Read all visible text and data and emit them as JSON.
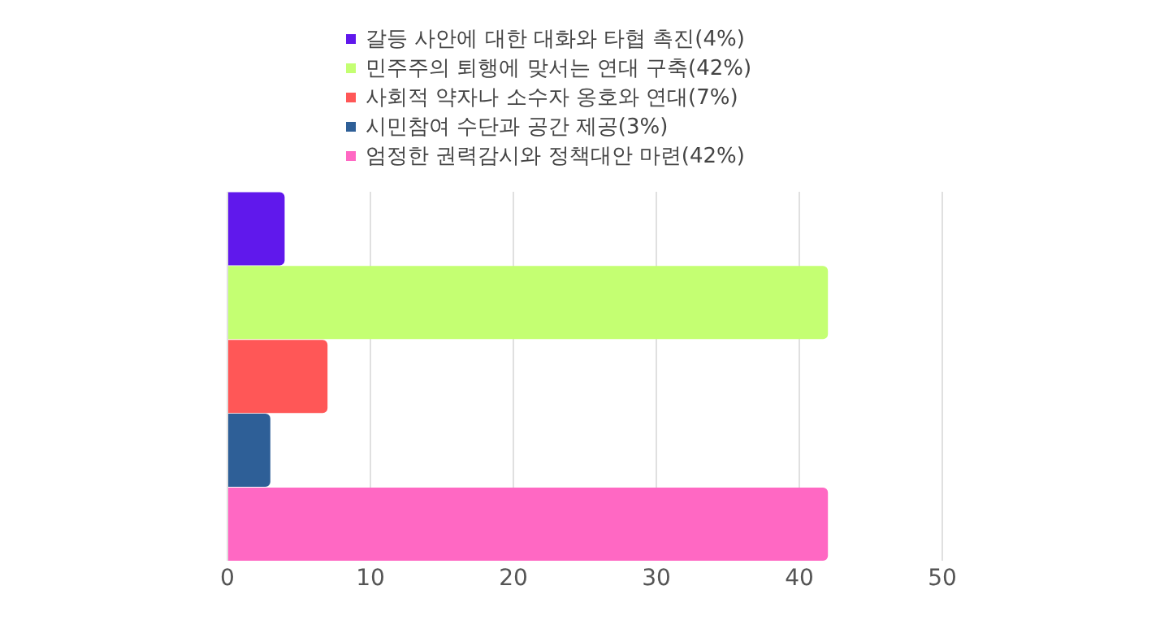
{
  "chart_data": {
    "type": "bar",
    "orientation": "horizontal",
    "categories": [
      null
    ],
    "series": [
      {
        "name": "갈등 사안에 대한 대화와 타협 촉진(4%)",
        "color": "#6018ec",
        "values": [
          4
        ]
      },
      {
        "name": "민주주의 퇴행에 맞서는 연대 구축(42%)",
        "color": "#c4ff72",
        "values": [
          42
        ]
      },
      {
        "name": "사회적 약자나 소수자 옹호와 연대(7%)",
        "color": "#ff5757",
        "values": [
          7
        ]
      },
      {
        "name": "시민참여 수단과 공간 제공(3%)",
        "color": "#2e5f97",
        "values": [
          3
        ]
      },
      {
        "name": "엄정한 권력감시와 정책대안 마련(42%)",
        "color": "#ff68c3",
        "values": [
          42
        ]
      }
    ],
    "xlim": [
      0,
      50
    ],
    "xticks": [
      0,
      10,
      20,
      30,
      40,
      50
    ],
    "grid": "x",
    "legend": "top"
  }
}
